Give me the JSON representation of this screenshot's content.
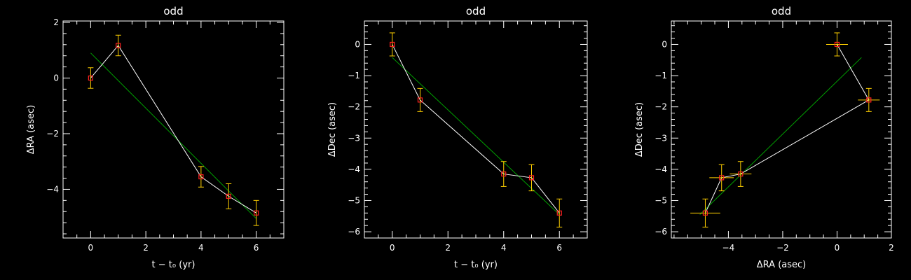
{
  "colors": {
    "background": "#000000",
    "axes": "#ffffff",
    "data_line": "#ffffff",
    "fit_line": "#00a000",
    "errorbar": "#ffd000",
    "marker": "#ff2020"
  },
  "chart_data": [
    {
      "type": "scatter",
      "title": "odd",
      "xlabel": "t − t₀ (yr)",
      "ylabel": "ΔRA (asec)",
      "xlim": [
        -1,
        7
      ],
      "ylim": [
        -5.75,
        2.05
      ],
      "xticks": [
        0,
        2,
        4,
        6
      ],
      "xtick_labels": [
        "0",
        "2",
        "4",
        "6"
      ],
      "yticks": [
        -4,
        -2,
        0,
        2
      ],
      "ytick_labels": [
        "−4",
        "−2",
        "0",
        "2"
      ],
      "grid": false,
      "series": [
        {
          "x": [
            0,
            1,
            4,
            5,
            6
          ],
          "y": [
            0.0,
            1.17,
            -3.55,
            -4.25,
            -4.85
          ],
          "yerr": [
            0.37,
            0.37,
            0.37,
            0.45,
            0.45
          ]
        }
      ],
      "fit_line": {
        "x": [
          0,
          6
        ],
        "y": [
          0.9,
          -5.05
        ]
      }
    },
    {
      "type": "scatter",
      "title": "odd",
      "xlabel": "t − t₀ (yr)",
      "ylabel": "ΔDec (asec)",
      "xlim": [
        -1,
        7
      ],
      "ylim": [
        -6.2,
        0.75
      ],
      "xticks": [
        0,
        2,
        4,
        6
      ],
      "xtick_labels": [
        "0",
        "2",
        "4",
        "6"
      ],
      "yticks": [
        -6,
        -5,
        -4,
        -3,
        -2,
        -1,
        0
      ],
      "ytick_labels": [
        "−6",
        "−5",
        "−4",
        "−3",
        "−2",
        "−1",
        "0"
      ],
      "grid": false,
      "series": [
        {
          "x": [
            0,
            1,
            4,
            5,
            6
          ],
          "y": [
            0.0,
            -1.78,
            -4.15,
            -4.27,
            -5.4
          ],
          "yerr": [
            0.37,
            0.37,
            0.4,
            0.42,
            0.45
          ]
        }
      ],
      "fit_line": {
        "x": [
          0,
          6
        ],
        "y": [
          -0.42,
          -5.45
        ]
      }
    },
    {
      "type": "scatter",
      "title": "odd",
      "xlabel": "ΔRA (asec)",
      "ylabel": "ΔDec (asec)",
      "xlim": [
        -6.1,
        2.0
      ],
      "ylim": [
        -6.2,
        0.75
      ],
      "xticks": [
        -4,
        -2,
        0,
        2
      ],
      "xtick_labels": [
        "−4",
        "−2",
        "0",
        "2"
      ],
      "yticks": [
        -6,
        -5,
        -4,
        -3,
        -2,
        -1,
        0
      ],
      "ytick_labels": [
        "−6",
        "−5",
        "−4",
        "−3",
        "−2",
        "−1",
        "0"
      ],
      "grid": false,
      "series": [
        {
          "x": [
            0.0,
            1.17,
            -3.55,
            -4.25,
            -4.85
          ],
          "y": [
            0.0,
            -1.78,
            -4.15,
            -4.27,
            -5.4
          ],
          "xerr": [
            0.4,
            0.4,
            0.4,
            0.45,
            0.55
          ],
          "yerr": [
            0.37,
            0.37,
            0.4,
            0.42,
            0.45
          ]
        }
      ],
      "fit_line": {
        "x": [
          -5.05,
          0.9
        ],
        "y": [
          -5.45,
          -0.42
        ]
      }
    }
  ]
}
